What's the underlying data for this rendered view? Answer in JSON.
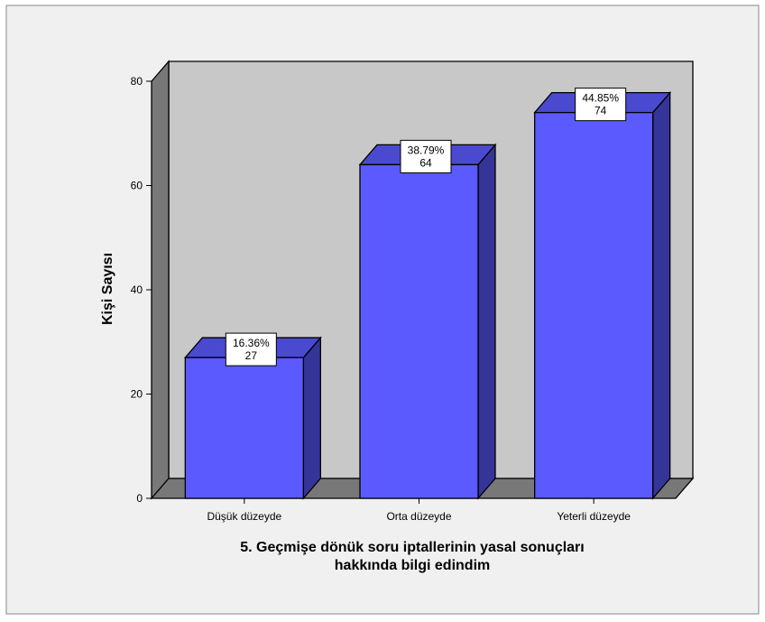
{
  "chart_data": {
    "type": "bar",
    "categories": [
      "Düşük düzeyde",
      "Orta düzeyde",
      "Yeterli düzeyde"
    ],
    "values": [
      27,
      64,
      74
    ],
    "percent_labels": [
      "16.36%",
      "38.79%",
      "44.85%"
    ],
    "count_labels": [
      "27",
      "64",
      "74"
    ],
    "ylabel": "Kişi Sayısı",
    "xlabel_lines": [
      "5. Geçmişe dönük soru iptallerinin yasal sonuçları",
      "hakkında bilgi edindim"
    ],
    "ylim": [
      0,
      80
    ],
    "yticks": [
      "0",
      "20",
      "40",
      "60",
      "80"
    ],
    "grid": false,
    "style": "3d",
    "colors": {
      "bar_front": "#5a5aff",
      "bar_top": "#4a4ad0",
      "bar_side": "#343499",
      "back_wall": "#c8c8c8",
      "side_wall": "#787878",
      "floor": "#787878",
      "frame_bg": "#f0f0f0"
    }
  }
}
